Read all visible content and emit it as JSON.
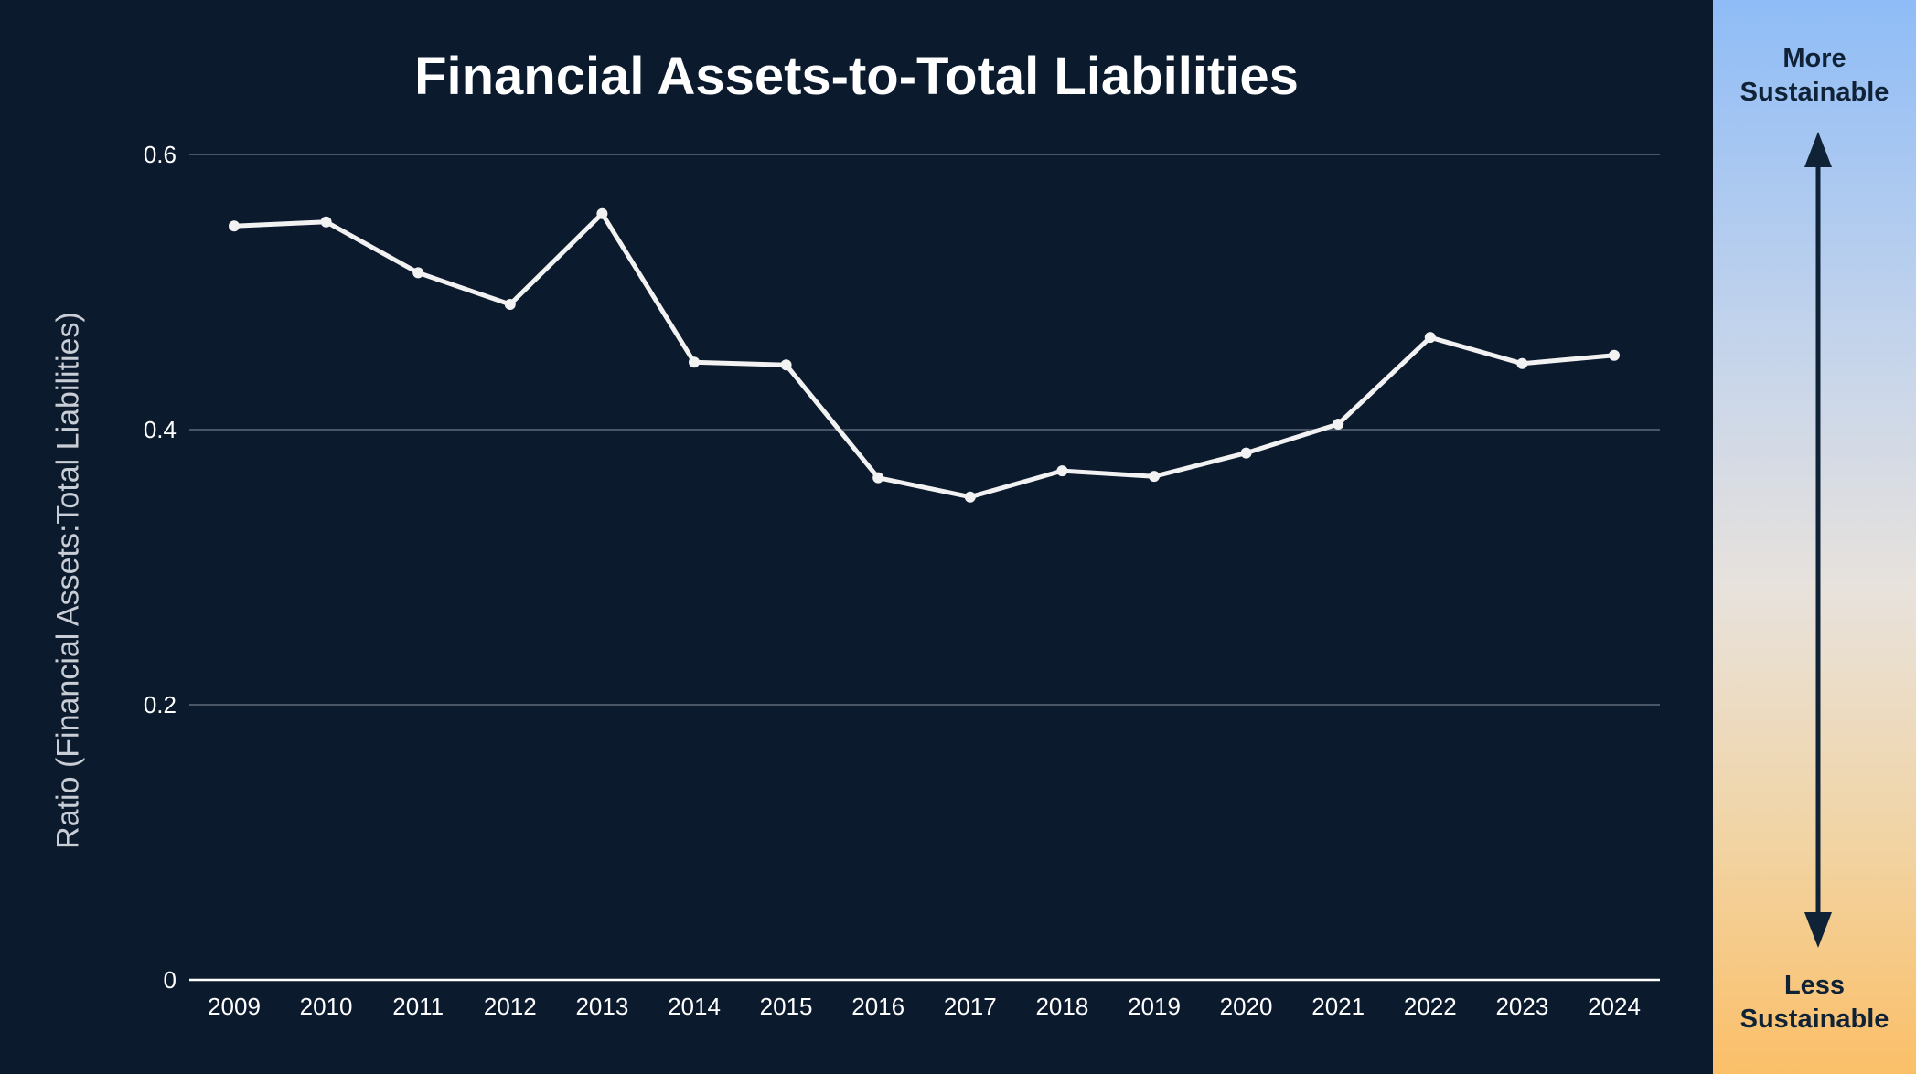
{
  "chart_data": {
    "type": "line",
    "title": "Financial Assets-to-Total Liabilities",
    "xlabel": "",
    "ylabel": "Ratio (Financial Assets:Total Liabilities)",
    "categories": [
      "2009",
      "2010",
      "2011",
      "2012",
      "2013",
      "2014",
      "2015",
      "2016",
      "2017",
      "2018",
      "2019",
      "2020",
      "2021",
      "2022",
      "2023",
      "2024"
    ],
    "series": [
      {
        "values": [
          0.548,
          0.551,
          0.514,
          0.491,
          0.557,
          0.449,
          0.447,
          0.365,
          0.351,
          0.37,
          0.366,
          0.383,
          0.404,
          0.467,
          0.448,
          0.454
        ]
      }
    ],
    "ylim": [
      0,
      0.6
    ],
    "yticks": [
      {
        "value": 0,
        "label": "0"
      },
      {
        "value": 0.2,
        "label": "0.2"
      },
      {
        "value": 0.4,
        "label": "0.4"
      },
      {
        "value": 0.6,
        "label": "0.6"
      }
    ],
    "grid": true,
    "line_color": "#f2f2f2",
    "background_color": "#0b1a2c"
  },
  "scale": {
    "top_label": "More\nSustainable",
    "bottom_label": "Less\nSustainable",
    "arrow_color": "#0f2236"
  }
}
